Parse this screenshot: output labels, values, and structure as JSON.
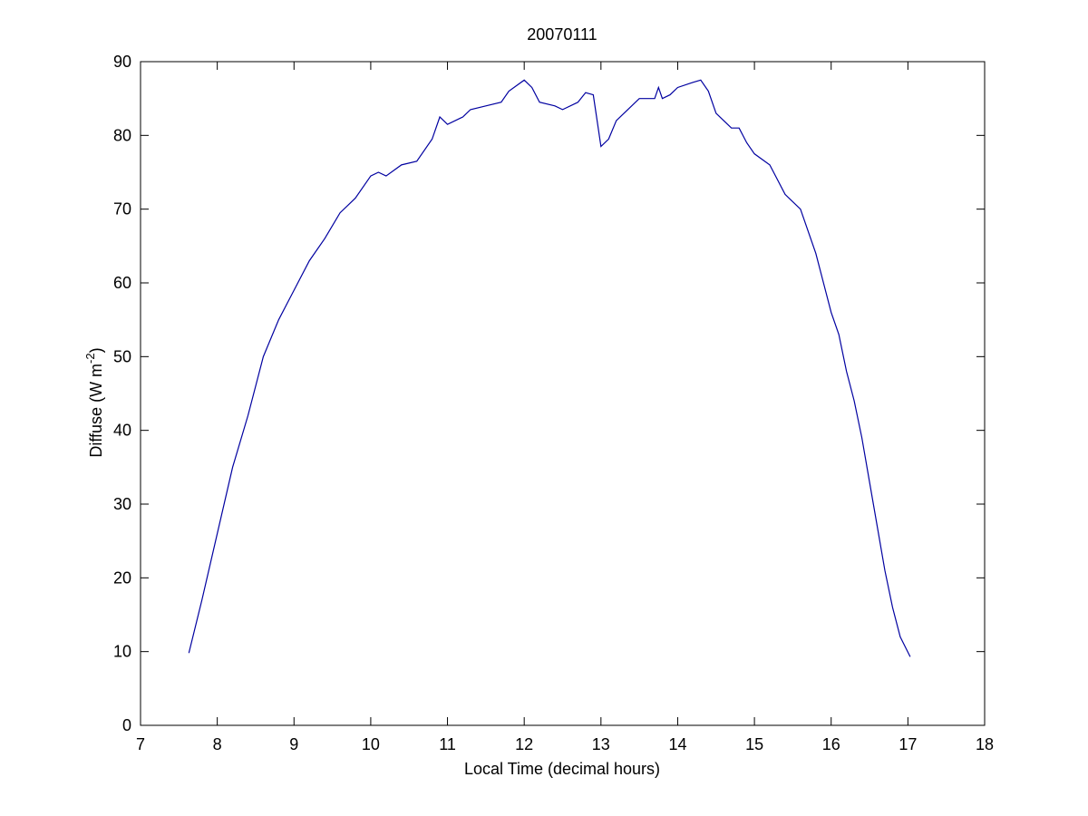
{
  "chart_data": {
    "type": "line",
    "title": "20070111",
    "xlabel": "Local Time (decimal hours)",
    "ylabel": [
      "Diffuse (W m",
      "-2",
      ")"
    ],
    "x": [
      7.63,
      7.8,
      8.0,
      8.2,
      8.4,
      8.5,
      8.6,
      8.8,
      8.9,
      9.0,
      9.2,
      9.4,
      9.6,
      9.8,
      10.0,
      10.1,
      10.2,
      10.4,
      10.6,
      10.8,
      10.9,
      11.0,
      11.2,
      11.3,
      11.5,
      11.7,
      11.8,
      12.0,
      12.1,
      12.2,
      12.4,
      12.5,
      12.7,
      12.8,
      12.9,
      12.95,
      13.0,
      13.1,
      13.2,
      13.3,
      13.5,
      13.7,
      13.75,
      13.8,
      13.9,
      14.0,
      14.2,
      14.3,
      14.4,
      14.5,
      14.6,
      14.7,
      14.8,
      14.9,
      15.0,
      15.2,
      15.4,
      15.6,
      15.7,
      15.8,
      15.9,
      16.0,
      16.1,
      16.2,
      16.3,
      16.4,
      16.5,
      16.6,
      16.7,
      16.8,
      16.9,
      17.03
    ],
    "series": [
      {
        "name": "Diffuse",
        "color": "#0000a0",
        "values": [
          9.8,
          17,
          26,
          35,
          42,
          46,
          50,
          55,
          57,
          59,
          63,
          66,
          69.5,
          71.5,
          74.5,
          75,
          74.5,
          76,
          76.5,
          79.5,
          82.5,
          81.5,
          82.5,
          83.5,
          84,
          84.5,
          86,
          87.5,
          86.5,
          84.5,
          84,
          83.5,
          84.5,
          85.8,
          85.5,
          82,
          78.5,
          79.5,
          82,
          83,
          85,
          85,
          86.5,
          85,
          85.5,
          86.5,
          87.2,
          87.5,
          86,
          83,
          82,
          81,
          81,
          79,
          77.5,
          76,
          72,
          70,
          67,
          64,
          60,
          56,
          53,
          48,
          44,
          39,
          33,
          27,
          21,
          16,
          12,
          9.3
        ]
      }
    ],
    "xlim": [
      7,
      18
    ],
    "xticks": [
      7,
      8,
      9,
      10,
      11,
      12,
      13,
      14,
      15,
      16,
      17,
      18
    ],
    "ylim": [
      0,
      90
    ],
    "yticks": [
      0,
      10,
      20,
      30,
      40,
      50,
      60,
      70,
      80,
      90
    ]
  }
}
